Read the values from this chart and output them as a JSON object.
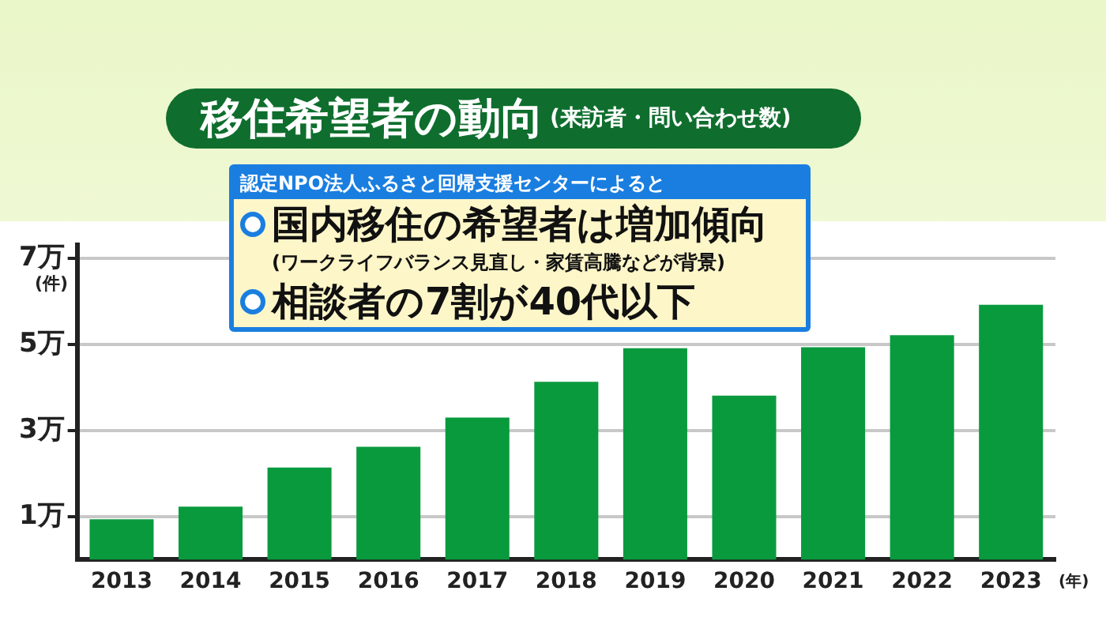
{
  "chart_data": {
    "type": "bar",
    "title": "移住希望者の動向",
    "subtitle": "(来訪者・問い合わせ数)",
    "xlabel": "(年)",
    "ylabel": "(件)",
    "annotations": [
      "認定NPO法人ふるさと回帰支援センターによると",
      "国内移住の希望者は増加傾向",
      "(ワークライフバランス見直し・家賃高騰などが背景)",
      "相談者の7割が40代以下"
    ],
    "categories": [
      "2013",
      "2014",
      "2015",
      "2016",
      "2017",
      "2018",
      "2019",
      "2020",
      "2021",
      "2022",
      "2023"
    ],
    "values": [
      0.94,
      1.23,
      2.14,
      2.62,
      3.3,
      4.13,
      4.91,
      3.81,
      4.93,
      5.21,
      5.92
    ],
    "color": "#0a9a3e",
    "ylim": [
      0,
      7.3
    ],
    "yticks": [
      {
        "value": 1,
        "label": "1万"
      },
      {
        "value": 3,
        "label": "3万"
      },
      {
        "value": 5,
        "label": "5万"
      },
      {
        "value": 7,
        "label": "7万"
      }
    ],
    "grid": "y"
  }
}
